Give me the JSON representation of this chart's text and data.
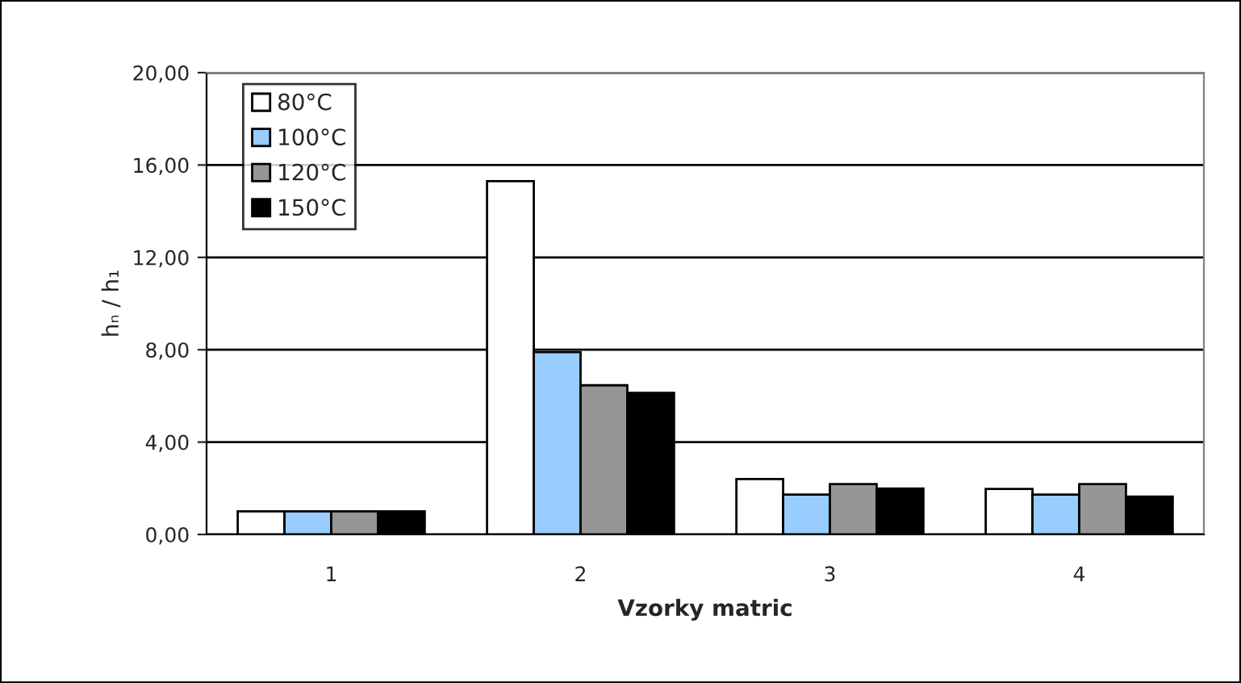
{
  "chart_data": {
    "type": "bar",
    "xlabel": "Vzorky matric",
    "ylabel": "hₙ / h₁",
    "categories": [
      "1",
      "2",
      "3",
      "4"
    ],
    "series": [
      {
        "name": "80°C",
        "color": "#ffffff",
        "values": [
          1.0,
          15.3,
          2.4,
          1.97
        ]
      },
      {
        "name": "100°C",
        "color": "#99ccff",
        "values": [
          1.0,
          7.9,
          1.73,
          1.73
        ]
      },
      {
        "name": "120°C",
        "color": "#969696",
        "values": [
          1.0,
          6.46,
          2.18,
          2.18
        ]
      },
      {
        "name": "150°C",
        "color": "#000000",
        "values": [
          1.0,
          6.13,
          1.99,
          1.64
        ]
      }
    ],
    "ylim": [
      0,
      20
    ],
    "yticks": [
      {
        "value": 0,
        "label": "0,00"
      },
      {
        "value": 4,
        "label": "4,00"
      },
      {
        "value": 8,
        "label": "8,00"
      },
      {
        "value": 12,
        "label": "12,00"
      },
      {
        "value": 16,
        "label": "16,00"
      },
      {
        "value": 20,
        "label": "20,00"
      }
    ],
    "grid": "y",
    "legend": "top left"
  }
}
